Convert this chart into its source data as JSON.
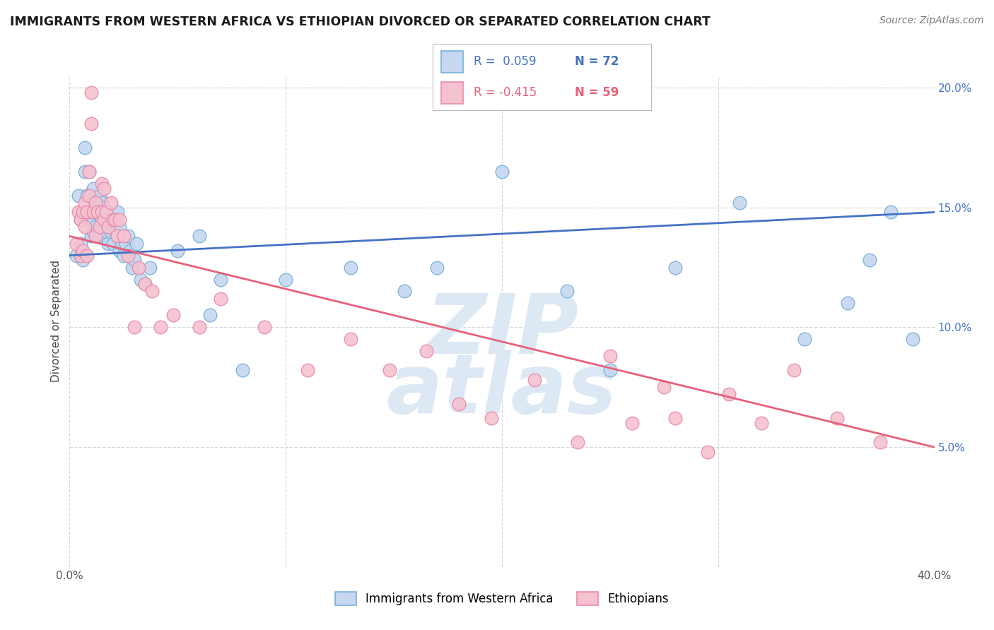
{
  "title": "IMMIGRANTS FROM WESTERN AFRICA VS ETHIOPIAN DIVORCED OR SEPARATED CORRELATION CHART",
  "source": "Source: ZipAtlas.com",
  "ylabel": "Divorced or Separated",
  "xmin": 0.0,
  "xmax": 0.4,
  "ymin": 0.0,
  "ymax": 0.205,
  "xticks": [
    0.0,
    0.1,
    0.2,
    0.3,
    0.4
  ],
  "xticklabels": [
    "0.0%",
    "",
    "",
    "",
    "40.0%"
  ],
  "yticks": [
    0.05,
    0.1,
    0.15,
    0.2
  ],
  "yticklabels": [
    "5.0%",
    "10.0%",
    "15.0%",
    "20.0%"
  ],
  "series1_label": "Immigrants from Western Africa",
  "series1_R": "0.059",
  "series1_N": "72",
  "series1_color": "#c5d8f0",
  "series1_edge_color": "#7aafd4",
  "series2_label": "Ethiopians",
  "series2_R": "-0.415",
  "series2_N": "59",
  "series2_color": "#f5c2d0",
  "series2_edge_color": "#e88aaa",
  "trend1_color": "#4472c4",
  "trend2_color": "#e8607a",
  "watermark_zip": "ZIP",
  "watermark_atlas": "atlas",
  "background_color": "#ffffff",
  "grid_color": "#d8d8d8",
  "trend1_x0": 0.0,
  "trend1_y0": 0.13,
  "trend1_x1": 0.4,
  "trend1_y1": 0.148,
  "trend2_x0": 0.0,
  "trend2_y0": 0.138,
  "trend2_x1": 0.4,
  "trend2_y1": 0.05,
  "series1_x": [
    0.003,
    0.004,
    0.005,
    0.005,
    0.006,
    0.006,
    0.007,
    0.007,
    0.008,
    0.008,
    0.009,
    0.009,
    0.009,
    0.01,
    0.01,
    0.01,
    0.011,
    0.011,
    0.011,
    0.012,
    0.012,
    0.013,
    0.013,
    0.014,
    0.014,
    0.014,
    0.015,
    0.015,
    0.016,
    0.016,
    0.017,
    0.017,
    0.018,
    0.018,
    0.019,
    0.02,
    0.02,
    0.021,
    0.022,
    0.022,
    0.023,
    0.023,
    0.024,
    0.025,
    0.026,
    0.027,
    0.028,
    0.029,
    0.03,
    0.031,
    0.033,
    0.035,
    0.037,
    0.05,
    0.06,
    0.065,
    0.07,
    0.08,
    0.1,
    0.13,
    0.155,
    0.17,
    0.2,
    0.23,
    0.25,
    0.28,
    0.31,
    0.34,
    0.36,
    0.37,
    0.38,
    0.39
  ],
  "series1_y": [
    0.13,
    0.155,
    0.135,
    0.145,
    0.128,
    0.148,
    0.165,
    0.175,
    0.148,
    0.155,
    0.145,
    0.155,
    0.165,
    0.138,
    0.148,
    0.155,
    0.14,
    0.148,
    0.158,
    0.142,
    0.152,
    0.138,
    0.15,
    0.14,
    0.148,
    0.155,
    0.145,
    0.152,
    0.138,
    0.15,
    0.14,
    0.148,
    0.135,
    0.148,
    0.14,
    0.135,
    0.145,
    0.14,
    0.138,
    0.148,
    0.132,
    0.142,
    0.135,
    0.13,
    0.135,
    0.138,
    0.132,
    0.125,
    0.128,
    0.135,
    0.12,
    0.118,
    0.125,
    0.132,
    0.138,
    0.105,
    0.12,
    0.082,
    0.12,
    0.125,
    0.115,
    0.125,
    0.165,
    0.115,
    0.082,
    0.125,
    0.152,
    0.095,
    0.11,
    0.128,
    0.148,
    0.095
  ],
  "series2_x": [
    0.003,
    0.004,
    0.005,
    0.005,
    0.006,
    0.006,
    0.007,
    0.007,
    0.008,
    0.008,
    0.009,
    0.009,
    0.01,
    0.01,
    0.011,
    0.012,
    0.012,
    0.013,
    0.014,
    0.015,
    0.015,
    0.016,
    0.016,
    0.017,
    0.018,
    0.019,
    0.02,
    0.021,
    0.022,
    0.023,
    0.025,
    0.027,
    0.03,
    0.032,
    0.035,
    0.038,
    0.042,
    0.048,
    0.06,
    0.07,
    0.09,
    0.11,
    0.13,
    0.148,
    0.165,
    0.18,
    0.195,
    0.215,
    0.235,
    0.25,
    0.26,
    0.275,
    0.28,
    0.295,
    0.305,
    0.32,
    0.335,
    0.355,
    0.375
  ],
  "series2_y": [
    0.135,
    0.148,
    0.13,
    0.145,
    0.132,
    0.148,
    0.142,
    0.152,
    0.13,
    0.148,
    0.155,
    0.165,
    0.185,
    0.198,
    0.148,
    0.138,
    0.152,
    0.148,
    0.142,
    0.148,
    0.16,
    0.145,
    0.158,
    0.148,
    0.142,
    0.152,
    0.145,
    0.145,
    0.138,
    0.145,
    0.138,
    0.13,
    0.1,
    0.125,
    0.118,
    0.115,
    0.1,
    0.105,
    0.1,
    0.112,
    0.1,
    0.082,
    0.095,
    0.082,
    0.09,
    0.068,
    0.062,
    0.078,
    0.052,
    0.088,
    0.06,
    0.075,
    0.062,
    0.048,
    0.072,
    0.06,
    0.082,
    0.062,
    0.052
  ]
}
